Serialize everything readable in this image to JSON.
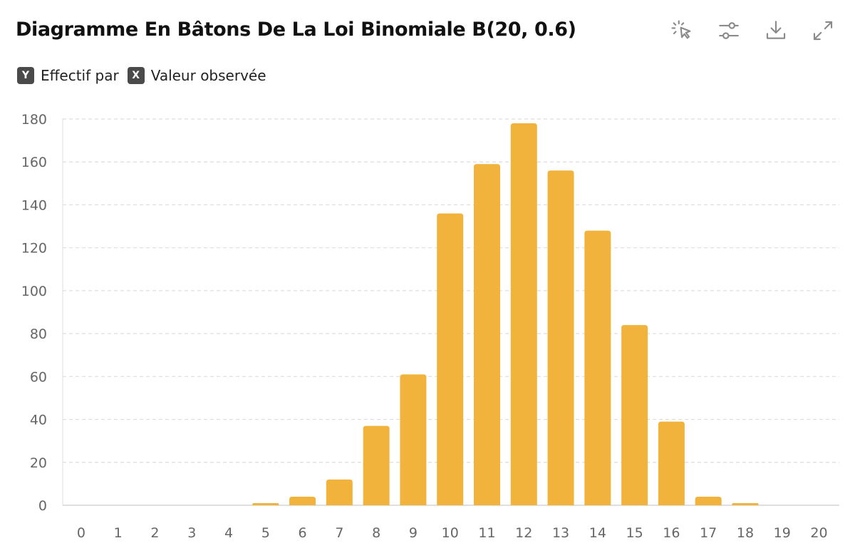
{
  "header": {
    "title": "Diagramme En Bâtons De La Loi Binomiale B(20, 0.6)",
    "toolbar": [
      {
        "name": "select-pointer-icon"
      },
      {
        "name": "sliders-icon"
      },
      {
        "name": "download-icon"
      },
      {
        "name": "expand-icon"
      }
    ]
  },
  "axis_legend": {
    "y_badge": "Y",
    "y_label": "Effectif par",
    "x_badge": "X",
    "x_label": "Valeur observée"
  },
  "colors": {
    "bar": "#F2B33D",
    "grid": "#DDDDDD",
    "axis_text": "#666666",
    "icon": "#8A8A8A"
  },
  "chart_data": {
    "type": "bar",
    "title": "Diagramme En Bâtons De La Loi Binomiale B(20, 0.6)",
    "xlabel": "Valeur observée",
    "ylabel": "Effectif par",
    "categories": [
      "0",
      "1",
      "2",
      "3",
      "4",
      "5",
      "6",
      "7",
      "8",
      "9",
      "10",
      "11",
      "12",
      "13",
      "14",
      "15",
      "16",
      "17",
      "18",
      "19",
      "20"
    ],
    "values": [
      0,
      0,
      0,
      0,
      0,
      1,
      4,
      12,
      37,
      61,
      136,
      159,
      178,
      156,
      128,
      84,
      39,
      4,
      1,
      0,
      0
    ],
    "ylim": [
      0,
      180
    ],
    "yticks": [
      0,
      20,
      40,
      60,
      80,
      100,
      120,
      140,
      160,
      180
    ],
    "grid": true,
    "legend": "none"
  }
}
